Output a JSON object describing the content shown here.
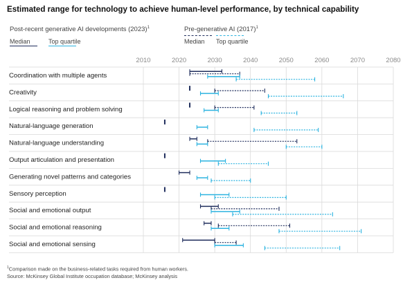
{
  "title": "Estimated range for technology to achieve human-level performance, by technical capability",
  "legend": {
    "post": {
      "label": "Post-recent generative AI developments (2023)",
      "note_mark": "1",
      "median": "Median",
      "top_quartile": "Top quartile"
    },
    "pre": {
      "label": "Pre-generative AI (2017)",
      "note_mark": "1",
      "median": "Median",
      "top_quartile": "Top quartile"
    }
  },
  "colors": {
    "post_median": "#1f2d5c",
    "post_top": "#2bb3e0",
    "pre_median": "#1f2d5c",
    "pre_top": "#2bb3e0",
    "grid": "#d9d9d9",
    "tick": "#8a8a8a"
  },
  "footnotes": {
    "note1_mark": "1",
    "note1": "Comparison made on the business-related tasks required from human workers.",
    "source": "Source: McKinsey Global Institute occupation database; McKinsey analysis"
  },
  "chart_data": {
    "type": "range",
    "title": "Estimated range for technology to achieve human-level performance, by technical capability",
    "xlim": [
      2010,
      2080
    ],
    "xticks": [
      "2010",
      "2020",
      "2030",
      "2040",
      "2050",
      "2060",
      "2070",
      "2080"
    ],
    "categories": [
      "Coordination with multiple agents",
      "Creativity",
      "Logical reasoning and problem solving",
      "Natural-language generation",
      "Natural-language understanding",
      "Output articulation and presentation",
      "Generating novel patterns and categories",
      "Sensory perception",
      "Social and emotional output",
      "Social and emotional reasoning",
      "Social and emotional sensing"
    ],
    "series": [
      {
        "name": "Post-recent generative AI developments (2023) — Median",
        "ranges": [
          [
            2023,
            2032
          ],
          [
            2023,
            2023
          ],
          [
            2023,
            2023
          ],
          [
            2016,
            2016
          ],
          [
            2023,
            2025
          ],
          [
            2016,
            2016
          ],
          [
            2020,
            2023
          ],
          [
            2016,
            2016
          ],
          [
            2026,
            2031
          ],
          [
            2027,
            2029
          ],
          [
            2021,
            2030
          ]
        ]
      },
      {
        "name": "Pre-generative AI (2017) — Median",
        "ranges": [
          [
            2023,
            2037
          ],
          [
            2030,
            2044
          ],
          [
            2030,
            2041
          ],
          null,
          [
            2028,
            2053
          ],
          null,
          null,
          null,
          [
            2029,
            2048
          ],
          [
            2031,
            2051
          ],
          [
            2030,
            2036
          ]
        ]
      },
      {
        "name": "Post-recent generative AI developments (2023) — Top quartile",
        "ranges": [
          [
            2028,
            2037
          ],
          [
            2026,
            2031
          ],
          [
            2027,
            2031
          ],
          [
            2025,
            2028
          ],
          [
            2025,
            2028
          ],
          [
            2026,
            2033
          ],
          [
            2025,
            2028
          ],
          [
            2026,
            2034
          ],
          [
            2029,
            2037
          ],
          [
            2029,
            2034
          ],
          [
            2030,
            2038
          ]
        ]
      },
      {
        "name": "Pre-generative AI (2017) — Top quartile",
        "ranges": [
          [
            2036,
            2058
          ],
          [
            2045,
            2066
          ],
          [
            2043,
            2053
          ],
          [
            2041,
            2059
          ],
          [
            2050,
            2060
          ],
          [
            2031,
            2045
          ],
          [
            2029,
            2040
          ],
          [
            2030,
            2050
          ],
          [
            2035,
            2063
          ],
          [
            2048,
            2071
          ],
          [
            2044,
            2065
          ]
        ]
      }
    ]
  }
}
